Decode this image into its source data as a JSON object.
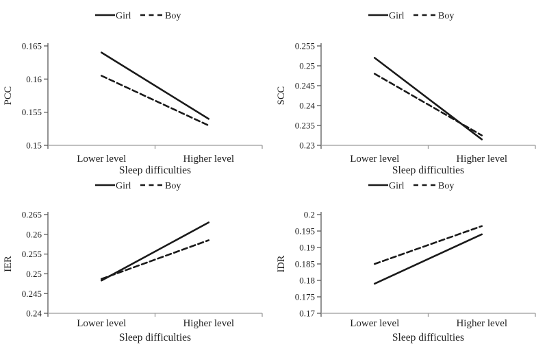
{
  "figure": {
    "background": "#ffffff",
    "series_line_color": "#1a1a1a",
    "text_color": "#1f1f1f",
    "y_axis_color": "#595959",
    "x_axis_color": "#9a9a9a"
  },
  "legend": {
    "position": "top",
    "items": [
      {
        "label": "Girl",
        "style": "solid"
      },
      {
        "label": "Boy",
        "style": "dashed"
      }
    ]
  },
  "chart_data": [
    {
      "type": "line",
      "position": "top-left",
      "ylabel": "PCC",
      "xlabel": "Sleep difficulties",
      "categories": [
        "Lower level",
        "Higher level"
      ],
      "ylim": [
        0.15,
        0.165
      ],
      "ytick_values": [
        0.165,
        0.16,
        0.155,
        0.15
      ],
      "ytick_labels": [
        "0.165",
        "0.16",
        "0.155",
        "0.15"
      ],
      "grid": false,
      "legend_position": "top",
      "series": [
        {
          "name": "Girl",
          "line_style": "solid",
          "values": [
            0.164,
            0.154
          ]
        },
        {
          "name": "Boy",
          "line_style": "dashed",
          "values": [
            0.1605,
            0.153
          ]
        }
      ]
    },
    {
      "type": "line",
      "position": "top-right",
      "ylabel": "SCC",
      "xlabel": "Sleep difficulties",
      "categories": [
        "Lower level",
        "Higher level"
      ],
      "ylim": [
        0.23,
        0.255
      ],
      "ytick_values": [
        0.255,
        0.25,
        0.245,
        0.24,
        0.235,
        0.23
      ],
      "ytick_labels": [
        "0.255",
        "0.25",
        "0.245",
        "0.24",
        "0.235",
        "0.23"
      ],
      "grid": false,
      "legend_position": "top",
      "series": [
        {
          "name": "Girl",
          "line_style": "solid",
          "values": [
            0.252,
            0.2315
          ]
        },
        {
          "name": "Boy",
          "line_style": "dashed",
          "values": [
            0.248,
            0.2325
          ]
        }
      ]
    },
    {
      "type": "line",
      "position": "bottom-left",
      "ylabel": "IER",
      "xlabel": "Sleep difficulties",
      "categories": [
        "Lower level",
        "Higher level"
      ],
      "ylim": [
        0.24,
        0.265
      ],
      "ytick_values": [
        0.265,
        0.26,
        0.255,
        0.25,
        0.245,
        0.24
      ],
      "ytick_labels": [
        "0.265",
        "0.26",
        "0.255",
        "0.25",
        "0.245",
        "0.24"
      ],
      "grid": false,
      "legend_position": "top",
      "series": [
        {
          "name": "Girl",
          "line_style": "solid",
          "values": [
            0.2483,
            0.263
          ]
        },
        {
          "name": "Boy",
          "line_style": "dashed",
          "values": [
            0.2487,
            0.2585
          ]
        }
      ]
    },
    {
      "type": "line",
      "position": "bottom-right",
      "ylabel": "IDR",
      "xlabel": "Sleep difficulties",
      "categories": [
        "Lower level",
        "Higher level"
      ],
      "ylim": [
        0.17,
        0.2
      ],
      "ytick_values": [
        0.2,
        0.195,
        0.19,
        0.185,
        0.18,
        0.175,
        0.17
      ],
      "ytick_labels": [
        "0.2",
        "0.195",
        "0.19",
        "0.185",
        "0.18",
        "0.175",
        "0.17"
      ],
      "grid": false,
      "legend_position": "top",
      "series": [
        {
          "name": "Girl",
          "line_style": "solid",
          "values": [
            0.179,
            0.194
          ]
        },
        {
          "name": "Boy",
          "line_style": "dashed",
          "values": [
            0.185,
            0.1965
          ]
        }
      ]
    }
  ]
}
